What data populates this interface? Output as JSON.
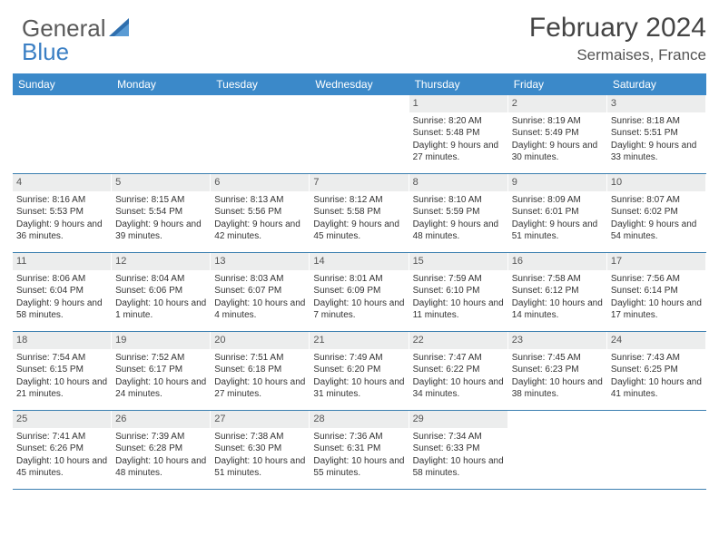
{
  "brand": {
    "part1": "General",
    "part2": "Blue"
  },
  "title": "February 2024",
  "location": "Sermaises, France",
  "colors": {
    "header_bar": "#3b89c9",
    "daynum_bg": "#eceded",
    "week_border": "#3b7fb0",
    "text": "#333333",
    "title_text": "#444444"
  },
  "days_of_week": [
    "Sunday",
    "Monday",
    "Tuesday",
    "Wednesday",
    "Thursday",
    "Friday",
    "Saturday"
  ],
  "weeks": [
    [
      {
        "n": "",
        "sr": "",
        "ss": "",
        "dl": ""
      },
      {
        "n": "",
        "sr": "",
        "ss": "",
        "dl": ""
      },
      {
        "n": "",
        "sr": "",
        "ss": "",
        "dl": ""
      },
      {
        "n": "",
        "sr": "",
        "ss": "",
        "dl": ""
      },
      {
        "n": "1",
        "sr": "Sunrise: 8:20 AM",
        "ss": "Sunset: 5:48 PM",
        "dl": "Daylight: 9 hours and 27 minutes."
      },
      {
        "n": "2",
        "sr": "Sunrise: 8:19 AM",
        "ss": "Sunset: 5:49 PM",
        "dl": "Daylight: 9 hours and 30 minutes."
      },
      {
        "n": "3",
        "sr": "Sunrise: 8:18 AM",
        "ss": "Sunset: 5:51 PM",
        "dl": "Daylight: 9 hours and 33 minutes."
      }
    ],
    [
      {
        "n": "4",
        "sr": "Sunrise: 8:16 AM",
        "ss": "Sunset: 5:53 PM",
        "dl": "Daylight: 9 hours and 36 minutes."
      },
      {
        "n": "5",
        "sr": "Sunrise: 8:15 AM",
        "ss": "Sunset: 5:54 PM",
        "dl": "Daylight: 9 hours and 39 minutes."
      },
      {
        "n": "6",
        "sr": "Sunrise: 8:13 AM",
        "ss": "Sunset: 5:56 PM",
        "dl": "Daylight: 9 hours and 42 minutes."
      },
      {
        "n": "7",
        "sr": "Sunrise: 8:12 AM",
        "ss": "Sunset: 5:58 PM",
        "dl": "Daylight: 9 hours and 45 minutes."
      },
      {
        "n": "8",
        "sr": "Sunrise: 8:10 AM",
        "ss": "Sunset: 5:59 PM",
        "dl": "Daylight: 9 hours and 48 minutes."
      },
      {
        "n": "9",
        "sr": "Sunrise: 8:09 AM",
        "ss": "Sunset: 6:01 PM",
        "dl": "Daylight: 9 hours and 51 minutes."
      },
      {
        "n": "10",
        "sr": "Sunrise: 8:07 AM",
        "ss": "Sunset: 6:02 PM",
        "dl": "Daylight: 9 hours and 54 minutes."
      }
    ],
    [
      {
        "n": "11",
        "sr": "Sunrise: 8:06 AM",
        "ss": "Sunset: 6:04 PM",
        "dl": "Daylight: 9 hours and 58 minutes."
      },
      {
        "n": "12",
        "sr": "Sunrise: 8:04 AM",
        "ss": "Sunset: 6:06 PM",
        "dl": "Daylight: 10 hours and 1 minute."
      },
      {
        "n": "13",
        "sr": "Sunrise: 8:03 AM",
        "ss": "Sunset: 6:07 PM",
        "dl": "Daylight: 10 hours and 4 minutes."
      },
      {
        "n": "14",
        "sr": "Sunrise: 8:01 AM",
        "ss": "Sunset: 6:09 PM",
        "dl": "Daylight: 10 hours and 7 minutes."
      },
      {
        "n": "15",
        "sr": "Sunrise: 7:59 AM",
        "ss": "Sunset: 6:10 PM",
        "dl": "Daylight: 10 hours and 11 minutes."
      },
      {
        "n": "16",
        "sr": "Sunrise: 7:58 AM",
        "ss": "Sunset: 6:12 PM",
        "dl": "Daylight: 10 hours and 14 minutes."
      },
      {
        "n": "17",
        "sr": "Sunrise: 7:56 AM",
        "ss": "Sunset: 6:14 PM",
        "dl": "Daylight: 10 hours and 17 minutes."
      }
    ],
    [
      {
        "n": "18",
        "sr": "Sunrise: 7:54 AM",
        "ss": "Sunset: 6:15 PM",
        "dl": "Daylight: 10 hours and 21 minutes."
      },
      {
        "n": "19",
        "sr": "Sunrise: 7:52 AM",
        "ss": "Sunset: 6:17 PM",
        "dl": "Daylight: 10 hours and 24 minutes."
      },
      {
        "n": "20",
        "sr": "Sunrise: 7:51 AM",
        "ss": "Sunset: 6:18 PM",
        "dl": "Daylight: 10 hours and 27 minutes."
      },
      {
        "n": "21",
        "sr": "Sunrise: 7:49 AM",
        "ss": "Sunset: 6:20 PM",
        "dl": "Daylight: 10 hours and 31 minutes."
      },
      {
        "n": "22",
        "sr": "Sunrise: 7:47 AM",
        "ss": "Sunset: 6:22 PM",
        "dl": "Daylight: 10 hours and 34 minutes."
      },
      {
        "n": "23",
        "sr": "Sunrise: 7:45 AM",
        "ss": "Sunset: 6:23 PM",
        "dl": "Daylight: 10 hours and 38 minutes."
      },
      {
        "n": "24",
        "sr": "Sunrise: 7:43 AM",
        "ss": "Sunset: 6:25 PM",
        "dl": "Daylight: 10 hours and 41 minutes."
      }
    ],
    [
      {
        "n": "25",
        "sr": "Sunrise: 7:41 AM",
        "ss": "Sunset: 6:26 PM",
        "dl": "Daylight: 10 hours and 45 minutes."
      },
      {
        "n": "26",
        "sr": "Sunrise: 7:39 AM",
        "ss": "Sunset: 6:28 PM",
        "dl": "Daylight: 10 hours and 48 minutes."
      },
      {
        "n": "27",
        "sr": "Sunrise: 7:38 AM",
        "ss": "Sunset: 6:30 PM",
        "dl": "Daylight: 10 hours and 51 minutes."
      },
      {
        "n": "28",
        "sr": "Sunrise: 7:36 AM",
        "ss": "Sunset: 6:31 PM",
        "dl": "Daylight: 10 hours and 55 minutes."
      },
      {
        "n": "29",
        "sr": "Sunrise: 7:34 AM",
        "ss": "Sunset: 6:33 PM",
        "dl": "Daylight: 10 hours and 58 minutes."
      },
      {
        "n": "",
        "sr": "",
        "ss": "",
        "dl": ""
      },
      {
        "n": "",
        "sr": "",
        "ss": "",
        "dl": ""
      }
    ]
  ]
}
